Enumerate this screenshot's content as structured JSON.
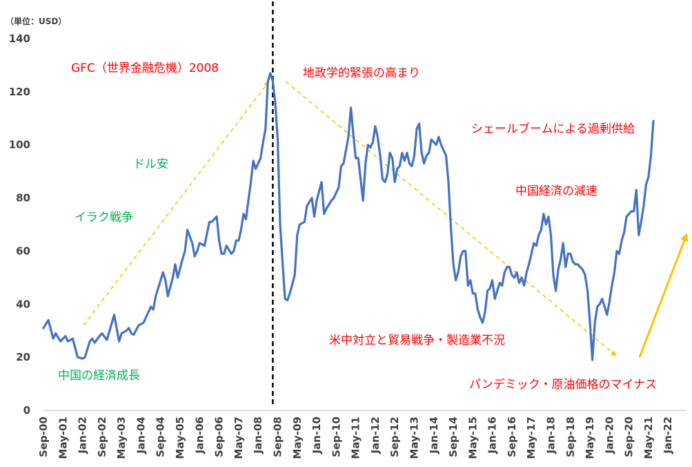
{
  "chart_data": {
    "type": "line",
    "unit_label": "（単位：USD）",
    "ylim": [
      0,
      140
    ],
    "y_ticks": [
      0,
      20,
      40,
      60,
      80,
      100,
      120,
      140
    ],
    "x_tick_labels": [
      "Sep-00",
      "May-01",
      "Jan-02",
      "Sep-02",
      "May-03",
      "Jan-04",
      "Sep-04",
      "May-05",
      "Jan-06",
      "Sep-06",
      "May-07",
      "Jan-08",
      "Sep-08",
      "May-09",
      "Jan-10",
      "Sep-10",
      "May-11",
      "Jan-12",
      "Sep-12",
      "May-13",
      "Jan-14",
      "Sep-14",
      "May-15",
      "Jan-16",
      "Sep-16",
      "May-17",
      "Jan-18",
      "Sep-18",
      "May-19",
      "Jan-20",
      "Sep-20",
      "May-21",
      "Jan-22"
    ],
    "x_range_months": [
      0,
      263
    ],
    "series": [
      {
        "color": "#4472C4",
        "points": [
          [
            "2000-09",
            31
          ],
          [
            "2000-11",
            34
          ],
          [
            "2001-01",
            27
          ],
          [
            "2001-02",
            29
          ],
          [
            "2001-04",
            26
          ],
          [
            "2001-06",
            28
          ],
          [
            "2001-07",
            26
          ],
          [
            "2001-09",
            27
          ],
          [
            "2001-11",
            20
          ],
          [
            "2002-01",
            19.5
          ],
          [
            "2002-02",
            20
          ],
          [
            "2002-04",
            26
          ],
          [
            "2002-05",
            27
          ],
          [
            "2002-06",
            25.5
          ],
          [
            "2002-08",
            28
          ],
          [
            "2002-09",
            29
          ],
          [
            "2002-11",
            26.5
          ],
          [
            "2003-02",
            36
          ],
          [
            "2003-04",
            26
          ],
          [
            "2003-05",
            29
          ],
          [
            "2003-07",
            30
          ],
          [
            "2003-08",
            31
          ],
          [
            "2003-09",
            29
          ],
          [
            "2003-10",
            28.5
          ],
          [
            "2003-12",
            32
          ],
          [
            "2004-02",
            33
          ],
          [
            "2004-03",
            35
          ],
          [
            "2004-05",
            39
          ],
          [
            "2004-06",
            38
          ],
          [
            "2004-07",
            43
          ],
          [
            "2004-08",
            46
          ],
          [
            "2004-10",
            52
          ],
          [
            "2004-11",
            49
          ],
          [
            "2004-12",
            43
          ],
          [
            "2005-02",
            50
          ],
          [
            "2005-03",
            55
          ],
          [
            "2005-04",
            50
          ],
          [
            "2005-06",
            57
          ],
          [
            "2005-07",
            60
          ],
          [
            "2005-08",
            68
          ],
          [
            "2005-10",
            63
          ],
          [
            "2005-11",
            58
          ],
          [
            "2005-12",
            60
          ],
          [
            "2006-01",
            63
          ],
          [
            "2006-03",
            62
          ],
          [
            "2006-05",
            71
          ],
          [
            "2006-06",
            71
          ],
          [
            "2006-08",
            73
          ],
          [
            "2006-09",
            64
          ],
          [
            "2006-10",
            59
          ],
          [
            "2006-11",
            59
          ],
          [
            "2006-12",
            62
          ],
          [
            "2007-02",
            59
          ],
          [
            "2007-03",
            60
          ],
          [
            "2007-04",
            64
          ],
          [
            "2007-05",
            64
          ],
          [
            "2007-06",
            68
          ],
          [
            "2007-07",
            74
          ],
          [
            "2007-08",
            72
          ],
          [
            "2007-09",
            79
          ],
          [
            "2007-10",
            86
          ],
          [
            "2007-11",
            94
          ],
          [
            "2007-12",
            91
          ],
          [
            "2008-01",
            93
          ],
          [
            "2008-02",
            95
          ],
          [
            "2008-03",
            101
          ],
          [
            "2008-04",
            106
          ],
          [
            "2008-05",
            124
          ],
          [
            "2008-06",
            127
          ],
          [
            "2008-07",
            124
          ],
          [
            "2008-08",
            116
          ],
          [
            "2008-09",
            102
          ],
          [
            "2008-10",
            70
          ],
          [
            "2008-11",
            56
          ],
          [
            "2008-12",
            42
          ],
          [
            "2009-01",
            41.5
          ],
          [
            "2009-02",
            44
          ],
          [
            "2009-04",
            51
          ],
          [
            "2009-05",
            66
          ],
          [
            "2009-06",
            70
          ],
          [
            "2009-08",
            71
          ],
          [
            "2009-09",
            77
          ],
          [
            "2009-11",
            80
          ],
          [
            "2009-12",
            73
          ],
          [
            "2010-01",
            79
          ],
          [
            "2010-03",
            86
          ],
          [
            "2010-04",
            74
          ],
          [
            "2010-05",
            76
          ],
          [
            "2010-07",
            79
          ],
          [
            "2010-08",
            80
          ],
          [
            "2010-10",
            84
          ],
          [
            "2010-11",
            92
          ],
          [
            "2010-12",
            93
          ],
          [
            "2011-02",
            103
          ],
          [
            "2011-03",
            114
          ],
          [
            "2011-04",
            104
          ],
          [
            "2011-05",
            95
          ],
          [
            "2011-06",
            95
          ],
          [
            "2011-07",
            87
          ],
          [
            "2011-08",
            79
          ],
          [
            "2011-09",
            93
          ],
          [
            "2011-10",
            100
          ],
          [
            "2011-11",
            99
          ],
          [
            "2011-12",
            101
          ],
          [
            "2012-01",
            107
          ],
          [
            "2012-02",
            103
          ],
          [
            "2012-03",
            96
          ],
          [
            "2012-04",
            87
          ],
          [
            "2012-05",
            86
          ],
          [
            "2012-06",
            89
          ],
          [
            "2012-07",
            97
          ],
          [
            "2012-08",
            95
          ],
          [
            "2012-09",
            86
          ],
          [
            "2012-10",
            91
          ],
          [
            "2012-11",
            92
          ],
          [
            "2012-12",
            97
          ],
          [
            "2013-01",
            94
          ],
          [
            "2013-02",
            97
          ],
          [
            "2013-03",
            93
          ],
          [
            "2013-04",
            92
          ],
          [
            "2013-05",
            96
          ],
          [
            "2013-06",
            106
          ],
          [
            "2013-07",
            108
          ],
          [
            "2013-08",
            97
          ],
          [
            "2013-09",
            93
          ],
          [
            "2013-10",
            96
          ],
          [
            "2013-11",
            97
          ],
          [
            "2013-12",
            102
          ],
          [
            "2014-01",
            101
          ],
          [
            "2014-02",
            100
          ],
          [
            "2014-03",
            103
          ],
          [
            "2014-04",
            100
          ],
          [
            "2014-05",
            98
          ],
          [
            "2014-06",
            96
          ],
          [
            "2014-07",
            86
          ],
          [
            "2014-08",
            69
          ],
          [
            "2014-09",
            55
          ],
          [
            "2014-10",
            49
          ],
          [
            "2014-11",
            52
          ],
          [
            "2014-12",
            58
          ],
          [
            "2015-01",
            60
          ],
          [
            "2015-02",
            60
          ],
          [
            "2015-03",
            47
          ],
          [
            "2015-04",
            49
          ],
          [
            "2015-05",
            44
          ],
          [
            "2015-06",
            44
          ],
          [
            "2015-07",
            38
          ],
          [
            "2015-08",
            35
          ],
          [
            "2015-09",
            33
          ],
          [
            "2015-10",
            37
          ],
          [
            "2015-11",
            45
          ],
          [
            "2015-12",
            46
          ],
          [
            "2016-01",
            49
          ],
          [
            "2016-02",
            42
          ],
          [
            "2016-03",
            45
          ],
          [
            "2016-04",
            48
          ],
          [
            "2016-05",
            47
          ],
          [
            "2016-06",
            52
          ],
          [
            "2016-07",
            54
          ],
          [
            "2016-08",
            54
          ],
          [
            "2016-09",
            51
          ],
          [
            "2016-10",
            50
          ],
          [
            "2016-11",
            52
          ],
          [
            "2016-12",
            48
          ],
          [
            "2017-01",
            50
          ],
          [
            "2017-02",
            47
          ],
          [
            "2017-03",
            52
          ],
          [
            "2017-04",
            55
          ],
          [
            "2017-05",
            59
          ],
          [
            "2017-06",
            63
          ],
          [
            "2017-07",
            62
          ],
          [
            "2017-08",
            66
          ],
          [
            "2017-09",
            68
          ],
          [
            "2017-10",
            74
          ],
          [
            "2017-11",
            70
          ],
          [
            "2017-12",
            73
          ],
          [
            "2018-01",
            66
          ],
          [
            "2018-02",
            51
          ],
          [
            "2018-03",
            45
          ],
          [
            "2018-04",
            53
          ],
          [
            "2018-05",
            57
          ],
          [
            "2018-06",
            63
          ],
          [
            "2018-07",
            54
          ],
          [
            "2018-08",
            59
          ],
          [
            "2018-09",
            59
          ],
          [
            "2018-10",
            56
          ],
          [
            "2018-11",
            55
          ],
          [
            "2018-12",
            55
          ],
          [
            "2019-01",
            54
          ],
          [
            "2019-02",
            53
          ],
          [
            "2019-03",
            51
          ],
          [
            "2019-04",
            45
          ],
          [
            "2019-05",
            33
          ],
          [
            "2019-06",
            19
          ],
          [
            "2019-07",
            33
          ],
          [
            "2019-08",
            39
          ],
          [
            "2019-09",
            40
          ],
          [
            "2019-10",
            42
          ],
          [
            "2019-11",
            39
          ],
          [
            "2019-12",
            36
          ],
          [
            "2020-01",
            41
          ],
          [
            "2020-02",
            47
          ],
          [
            "2020-03",
            52
          ],
          [
            "2020-04",
            60
          ],
          [
            "2020-05",
            59
          ],
          [
            "2020-06",
            64
          ],
          [
            "2020-07",
            67
          ],
          [
            "2020-08",
            73
          ],
          [
            "2020-09",
            74
          ],
          [
            "2020-10",
            75
          ],
          [
            "2020-11",
            75
          ],
          [
            "2020-12",
            83
          ],
          [
            "2021-01",
            66
          ],
          [
            "2021-02",
            71
          ],
          [
            "2021-03",
            77
          ],
          [
            "2021-04",
            85
          ],
          [
            "2021-05",
            88
          ],
          [
            "2021-06",
            96
          ],
          [
            "2021-07",
            109
          ]
        ]
      }
    ],
    "annotations": [
      {
        "text": "GFC（世界金融危機）2008",
        "color": "#FF0000"
      },
      {
        "text": "地政学的緊張の高まり",
        "color": "#FF0000"
      },
      {
        "text": "シェールブームによる過剰供給",
        "color": "#FF0000"
      },
      {
        "text": "中国経済の減速",
        "color": "#FF0000"
      },
      {
        "text": "米中対立と貿易戦争・製造業不況",
        "color": "#FF0000"
      },
      {
        "text": "パンデミック・原油価格のマイナス",
        "color": "#FF0000"
      },
      {
        "text": "ドル安",
        "color": "#00B050"
      },
      {
        "text": "イラク戦争",
        "color": "#00B050"
      },
      {
        "text": "中国の経済成長",
        "color": "#00B050"
      }
    ],
    "grid": false,
    "legend": "none"
  }
}
